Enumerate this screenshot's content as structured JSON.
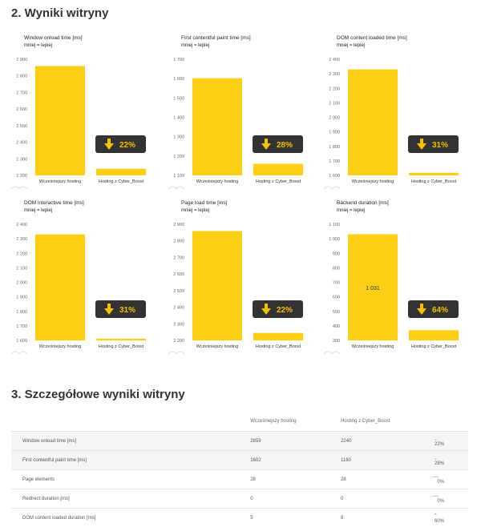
{
  "section2_title": "2. Wyniki witryny",
  "section3_title": "3. Szczegółowe wyniki witryny",
  "chart_data": [
    {
      "type": "bar",
      "title": "Window onload time [ms]",
      "subtitle": "mniej = lepiej",
      "categories": [
        "Wcześniejszy hosting",
        "Hosting z Cyber_Boost"
      ],
      "values": [
        2859,
        2240
      ],
      "ylim": [
        2200,
        2900
      ],
      "yticks": [
        "2 200",
        "2 300",
        "2 400",
        "2 500",
        "2 600",
        "2 700",
        "2 800",
        "2 900"
      ],
      "badge": "22%"
    },
    {
      "type": "bar",
      "title": "First contentful paint time [ms]",
      "subtitle": "mniej = lepiej",
      "categories": [
        "Wcześniejszy hosting",
        "Hosting z Cyber_Boost"
      ],
      "values": [
        1602,
        1160
      ],
      "ylim": [
        1100,
        1700
      ],
      "yticks": [
        "1 100",
        "1 200",
        "1 300",
        "1 400",
        "1 500",
        "1 600",
        "1 700"
      ],
      "badge": "28%"
    },
    {
      "type": "bar",
      "title": "DOM content loaded time [ms]",
      "subtitle": "mniej = lepiej",
      "categories": [
        "Wcześniejszy hosting",
        "Hosting z Cyber_Boost"
      ],
      "values": [
        2330,
        1618
      ],
      "ylim": [
        1600,
        2400
      ],
      "yticks": [
        "1 600",
        "1 700",
        "1 800",
        "1 900",
        "2 000",
        "2 100",
        "2 200",
        "2 300",
        "2 400"
      ],
      "badge": "31%"
    },
    {
      "type": "bar",
      "title": "DOM interactive time [ms]",
      "subtitle": "mniej = lepiej",
      "categories": [
        "Wcześniejszy hosting",
        "Hosting z Cyber_Boost"
      ],
      "values": [
        2330,
        1612
      ],
      "ylim": [
        1600,
        2400
      ],
      "yticks": [
        "1 600",
        "1 700",
        "1 800",
        "1 900",
        "2 000",
        "2 100",
        "2 200",
        "2 300",
        "2 400"
      ],
      "badge": "31%"
    },
    {
      "type": "bar",
      "title": "Page load time [ms]",
      "subtitle": "mniej = lepiej",
      "categories": [
        "Wcześniejszy hosting",
        "Hosting z Cyber_Boost"
      ],
      "values": [
        2859,
        2245
      ],
      "ylim": [
        2200,
        2900
      ],
      "yticks": [
        "2 200",
        "2 300",
        "2 400",
        "2 500",
        "2 600",
        "2 700",
        "2 800",
        "2 900"
      ],
      "badge": "22%"
    },
    {
      "type": "bar",
      "title": "Backend duration [ms]",
      "subtitle": "mniej = lepiej",
      "categories": [
        "Wcześniejszy hosting",
        "Hosting z Cyber_Boost"
      ],
      "values": [
        1031,
        370
      ],
      "ylim": [
        300,
        1100
      ],
      "yticks": [
        "300",
        "400",
        "500",
        "600",
        "700",
        "800",
        "900",
        "1 000",
        "1 100"
      ],
      "badge": "64%",
      "bar_label": "1 031"
    }
  ],
  "table": {
    "headers": [
      "",
      "Wcześniejszy hosting",
      "Hosting z Cyber_Boost",
      ""
    ],
    "rows": [
      {
        "metric": "Window onload time [ms]",
        "before": "2859",
        "after": "2240",
        "trend": "down",
        "change": "22%"
      },
      {
        "metric": "First contentful paint time [ms]",
        "before": "1602",
        "after": "1160",
        "trend": "down",
        "change": "28%"
      },
      {
        "metric": "Page elements",
        "before": "28",
        "after": "28",
        "trend": "flat",
        "change": "0%"
      },
      {
        "metric": "Redirect duration [ms]",
        "before": "0",
        "after": "0",
        "trend": "flat",
        "change": "0%"
      },
      {
        "metric": "DOM content loaded duration [ms]",
        "before": "5",
        "after": "8",
        "trend": "up",
        "change": "60%"
      }
    ]
  }
}
